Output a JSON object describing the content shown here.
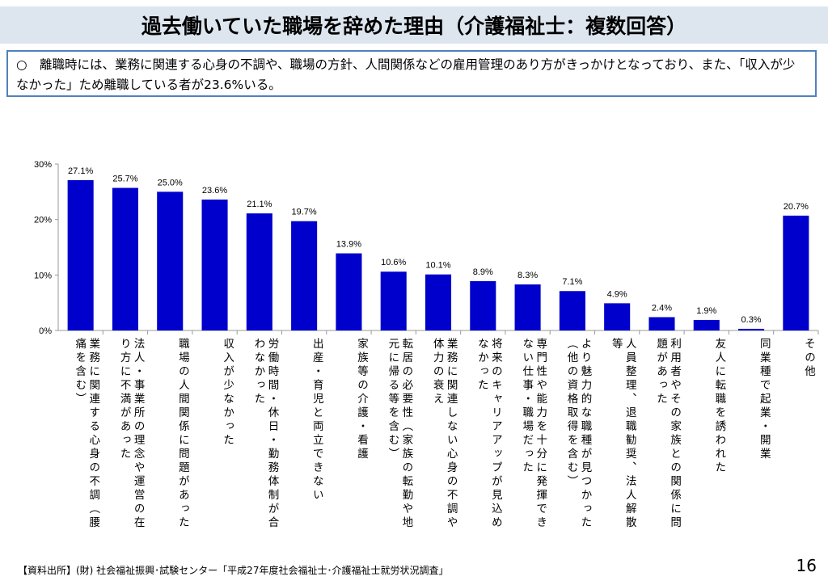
{
  "header": {
    "title": "過去働いていた職場を辞めた理由（介護福祉士：複数回答）"
  },
  "description": "○　離職時には、業務に関連する心身の不調や、職場の方針、人間関係などの雇用管理のあり方がきっかけとなっており、また、「収入が少なかった」ため離職している者が23.6%いる。",
  "chart_data": {
    "type": "bar",
    "title": "",
    "xlabel": "",
    "ylabel": "",
    "ylim": [
      0,
      30
    ],
    "yticks": [
      "0%",
      "10%",
      "20%",
      "30%"
    ],
    "grid": false,
    "bar_color": "#0000cc",
    "categories": [
      "業務に関連する心身の不調（腰痛を含む）",
      "法人・事業所の理念や運営の在り方に不満があった",
      "職場の人間関係に問題があった",
      "収入が少なかった",
      "労働時間・休日・勤務体制が合わなかった",
      "出産・育児と両立できない",
      "家族等の介護・看護",
      "転居の必要性（家族の転勤や地元に帰る等を含む）",
      "業務に関連しない心身の不調や体力の衰え",
      "将来のキャリアアップが見込めなかった",
      "専門性や能力を十分に発揮できない仕事・職場だった",
      "より魅力的な職種が見つかった（他の資格取得を含む）",
      "人員整理、退職勧奨、法人解散等",
      "利用者やその家族との関係に問題があった",
      "友人に転職を誘われた",
      "同業種で起業・開業",
      "その他"
    ],
    "values": [
      27.1,
      25.7,
      25.0,
      23.6,
      21.1,
      19.7,
      13.9,
      10.6,
      10.1,
      8.9,
      8.3,
      7.1,
      4.9,
      2.4,
      1.9,
      0.3,
      20.7
    ],
    "data_labels": [
      "27.1%",
      "25.7%",
      "25.0%",
      "23.6%",
      "21.1%",
      "19.7%",
      "13.9%",
      "10.6%",
      "10.1%",
      "8.9%",
      "8.3%",
      "7.1%",
      "4.9%",
      "2.4%",
      "1.9%",
      "0.3%",
      "20.7%"
    ]
  },
  "footer": {
    "source": "【資料出所】(財) 社会福祉振興･試験センター「平成27年度社会福祉士･介護福祉士就労状況調査」",
    "page_number": "16"
  }
}
